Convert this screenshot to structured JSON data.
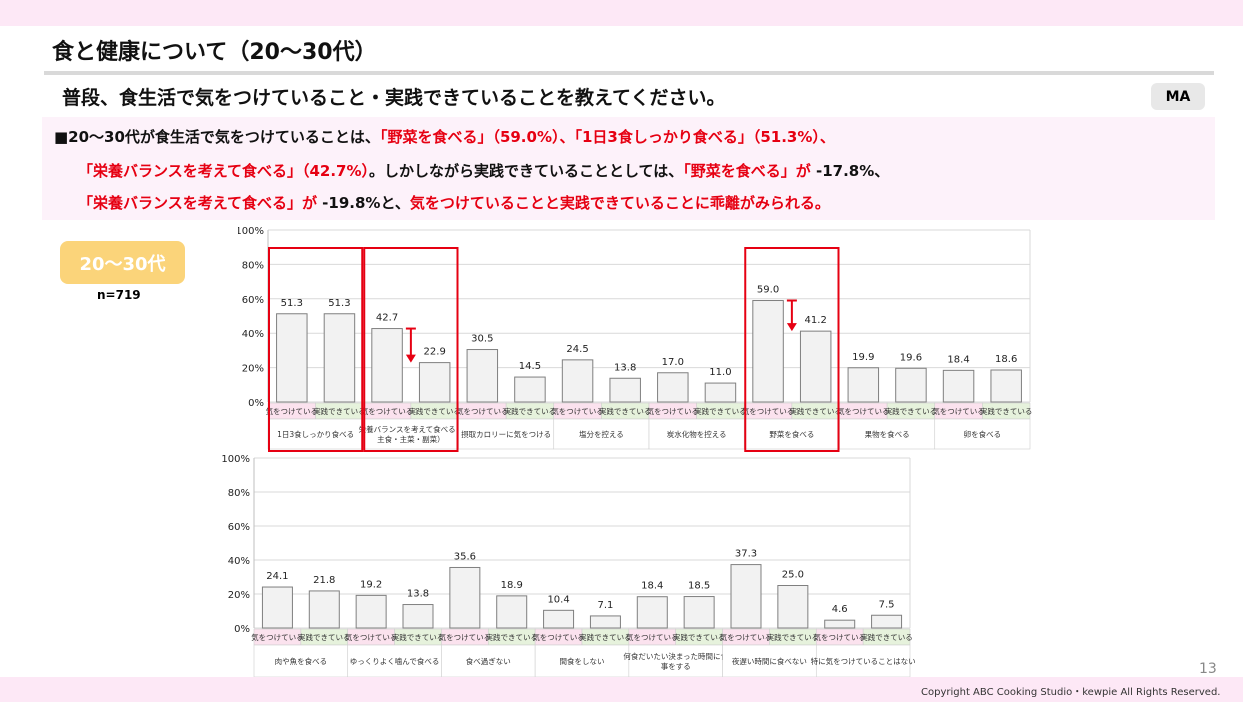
{
  "title": "食と健康について（20～30代）",
  "question": "普段、食生活で気をつけていること・実践できていることを教えてください。",
  "badge": "MA",
  "summary": {
    "line1": [
      {
        "t": "■20～30代が食生活で気をつけていることは、",
        "red": false
      },
      {
        "t": "「野菜を食べる」（59.0%）、「1日3食しっかり食べる」（51.3%）、",
        "red": true
      }
    ],
    "line2": [
      {
        "t": "「栄養バランスを考えて食べる」（42.7%）",
        "red": true
      },
      {
        "t": "。しかしながら実践できていることとしては、",
        "red": false
      },
      {
        "t": "「野菜を食べる」が",
        "red": true
      },
      {
        "t": " -17.8%、",
        "red": false
      }
    ],
    "line3": [
      {
        "t": "「栄養バランスを考えて食べる」が",
        "red": true
      },
      {
        "t": " -19.8%と、",
        "red": false
      },
      {
        "t": "気をつけていることと実践できていることに乖離がみられる。",
        "red": true
      }
    ]
  },
  "group_label": "20～30代",
  "n_label": "n=719",
  "page_number": "13",
  "copyright": "Copyright ABC Cooking Studio・kewpie All Rights Reserved.",
  "chart_data": [
    {
      "type": "bar",
      "ylim": [
        0,
        100
      ],
      "yticks": [
        "0%",
        "20%",
        "40%",
        "60%",
        "80%",
        "100%"
      ],
      "bar_labels": [
        "気をつけている",
        "実践できている"
      ],
      "categories": [
        "1日3食しっかり食べる",
        "栄養バランスを考えて食べる（主食・主菜・副菜）",
        "摂取カロリーに気をつける",
        "塩分を控える",
        "炭水化物を控える",
        "野菜を食べる",
        "果物を食べる",
        "卵を食べる"
      ],
      "series": [
        {
          "name": "気をつけている",
          "values": [
            51.3,
            42.7,
            30.5,
            24.5,
            17.0,
            59.0,
            19.9,
            18.4
          ]
        },
        {
          "name": "実践できている",
          "values": [
            51.3,
            22.9,
            14.5,
            13.8,
            11.0,
            41.2,
            19.6,
            18.6
          ]
        }
      ],
      "highlighted": [
        "1日3食しっかり食べる",
        "栄養バランスを考えて食べる（主食・主菜・副菜）",
        "野菜を食べる"
      ],
      "colors": {
        "bar": "#f2f2f2",
        "bar_stroke": "#7f7f7f",
        "label_pink": "#fbe2ee",
        "label_green": "#e6f2dc",
        "highlight": "#e60012"
      }
    },
    {
      "type": "bar",
      "ylim": [
        0,
        100
      ],
      "yticks": [
        "0%",
        "20%",
        "40%",
        "60%",
        "80%",
        "100%"
      ],
      "bar_labels": [
        "気をつけている",
        "実践できている"
      ],
      "categories": [
        "肉や魚を食べる",
        "ゆっくりよく噛んで食べる",
        "食べ過ぎない",
        "間食をしない",
        "何食だいたい決まった時間に食事をする",
        "夜遅い時間に食べない",
        "特に気をつけていることはない"
      ],
      "series": [
        {
          "name": "気をつけている",
          "values": [
            24.1,
            19.2,
            35.6,
            10.4,
            18.4,
            37.3,
            4.6
          ]
        },
        {
          "name": "実践できている",
          "values": [
            21.8,
            13.8,
            18.9,
            7.1,
            18.5,
            25.0,
            7.5
          ]
        }
      ],
      "colors": {
        "bar": "#f2f2f2",
        "bar_stroke": "#7f7f7f",
        "label_pink": "#fbe2ee",
        "label_green": "#e6f2dc"
      }
    }
  ]
}
